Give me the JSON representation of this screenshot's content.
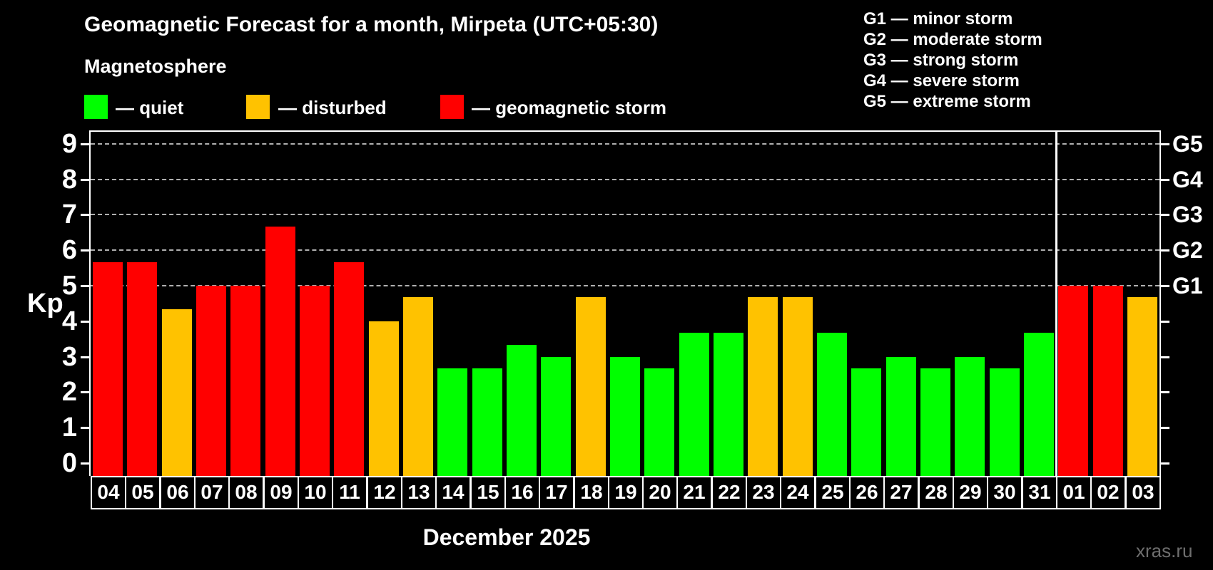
{
  "header": {
    "title": "Geomagnetic Forecast for a month, Mirpeta (UTC+05:30)",
    "subtitle": "Magnetosphere"
  },
  "legend": {
    "items": [
      {
        "label": "— quiet",
        "status": "quiet"
      },
      {
        "label": "— disturbed",
        "status": "disturbed"
      },
      {
        "label": "— geomagnetic storm",
        "status": "storm"
      }
    ]
  },
  "g_legend": {
    "items": [
      "G1 — minor storm",
      "G2 — moderate storm",
      "G3 — strong storm",
      "G4 — severe storm",
      "G5 — extreme storm"
    ]
  },
  "axis": {
    "y_label": "Kp",
    "kp_ticks": [
      "0",
      "1",
      "2",
      "3",
      "4",
      "5",
      "6",
      "7",
      "8",
      "9"
    ],
    "g_scale": [
      {
        "kp": 5,
        "label": "G1"
      },
      {
        "kp": 6,
        "label": "G2"
      },
      {
        "kp": 7,
        "label": "G3"
      },
      {
        "kp": 8,
        "label": "G4"
      },
      {
        "kp": 9,
        "label": "G5"
      }
    ]
  },
  "footer": {
    "month_label": "December 2025",
    "watermark": "xras.ru"
  },
  "colors": {
    "background": "#000000",
    "quiet": "#00ff00",
    "disturbed": "#ffc200",
    "storm": "#ff0000",
    "grid": "#b0b0b0",
    "axis": "#ffffff",
    "watermark": "#6e6e6e"
  },
  "chart_data": {
    "type": "bar",
    "title": "Geomagnetic Forecast for a month, Mirpeta (UTC+05:30)",
    "xlabel": "December 2025",
    "ylabel": "Kp",
    "ylim": [
      0,
      9.4
    ],
    "grid": "horizontal dashed lines at Kp 5-9 only",
    "legend_position": "top",
    "divider_after_index": 27,
    "categories": [
      "04",
      "05",
      "06",
      "07",
      "08",
      "09",
      "10",
      "11",
      "12",
      "13",
      "14",
      "15",
      "16",
      "17",
      "18",
      "19",
      "20",
      "21",
      "22",
      "23",
      "24",
      "25",
      "26",
      "27",
      "28",
      "29",
      "30",
      "31",
      "01",
      "02",
      "03"
    ],
    "values": [
      5.67,
      5.67,
      4.33,
      5,
      5,
      6.67,
      5,
      5.67,
      4,
      4.67,
      2.67,
      2.67,
      3.33,
      3,
      4.67,
      3,
      2.67,
      3.67,
      3.67,
      4.67,
      4.67,
      3.67,
      2.67,
      3,
      2.67,
      3,
      2.67,
      3.67,
      5,
      5,
      4.67
    ],
    "statuses": [
      "storm",
      "storm",
      "disturbed",
      "storm",
      "storm",
      "storm",
      "storm",
      "storm",
      "disturbed",
      "disturbed",
      "quiet",
      "quiet",
      "quiet",
      "quiet",
      "disturbed",
      "quiet",
      "quiet",
      "quiet",
      "quiet",
      "disturbed",
      "disturbed",
      "quiet",
      "quiet",
      "quiet",
      "quiet",
      "quiet",
      "quiet",
      "quiet",
      "storm",
      "storm",
      "disturbed"
    ]
  }
}
